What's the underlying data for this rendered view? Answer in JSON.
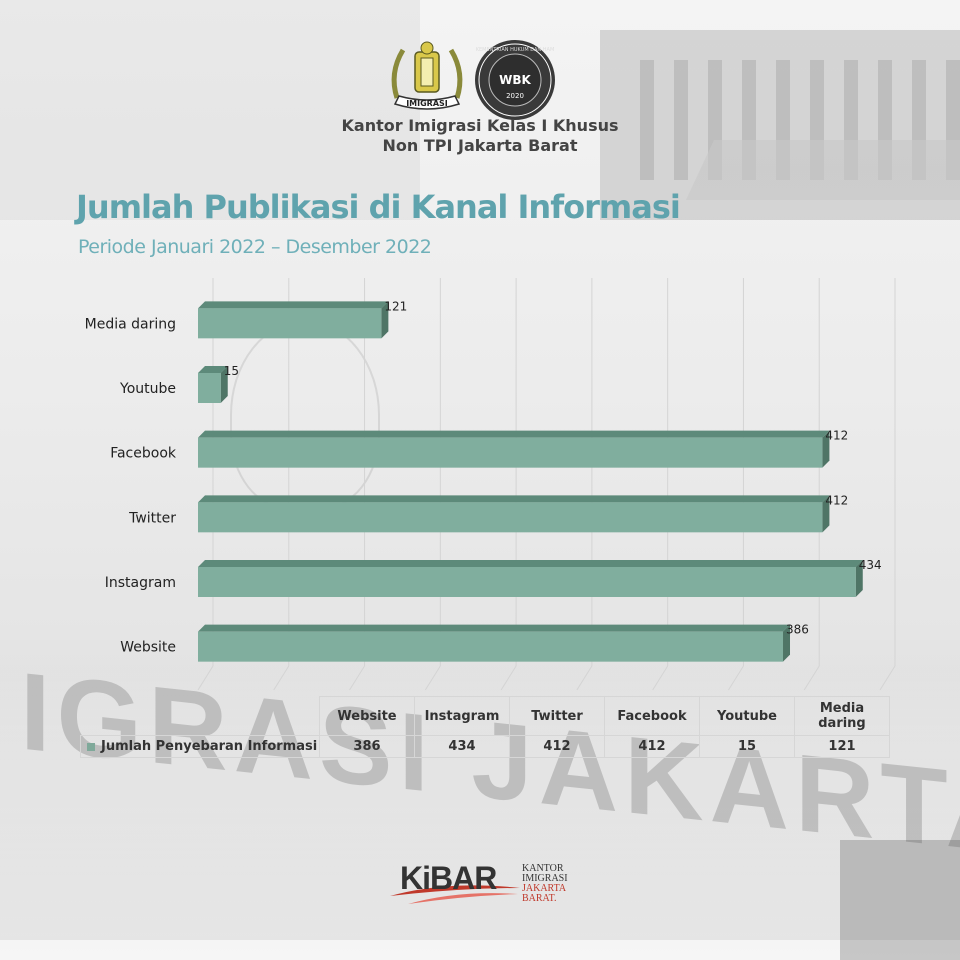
{
  "header": {
    "org_line1": "Kantor Imigrasi Kelas I Khusus",
    "org_line2": "Non TPI Jakarta Barat",
    "logo_left_text": "IMIGRASI",
    "logo_right_text": "WBK",
    "logo_right_year": "2020",
    "logo_right_ring": "KEMENTRIAN HUKUM DAN HAM"
  },
  "title": "Jumlah Publikasi di Kanal Informasi",
  "subtitle": "Periode Januari 2022 – Desember 2022",
  "chart_data": {
    "type": "bar",
    "orientation": "horizontal",
    "style": "3d",
    "categories": [
      "Website",
      "Instagram",
      "Twitter",
      "Facebook",
      "Youtube",
      "Media daring"
    ],
    "series": [
      {
        "name": "Jumlah Penyebaran Informasi",
        "values": [
          386,
          434,
          412,
          412,
          15,
          121
        ]
      }
    ],
    "xlim": [
      0,
      450
    ],
    "grid": true,
    "data_labels": true,
    "legend": "data-table-bottom",
    "colors": {
      "bar_face": "#80ae9e",
      "bar_top": "#5d8a7a",
      "bar_side": "#4f7566"
    }
  },
  "table": {
    "headers": [
      "Website",
      "Instagram",
      "Twitter",
      "Facebook",
      "Youtube",
      "Media daring"
    ],
    "row_label": "Jumlah Penyebaran Informasi",
    "values": [
      "386",
      "434",
      "412",
      "412",
      "15",
      "121"
    ]
  },
  "background": {
    "sign_text": "IGRASI JAKARTA BARAT"
  },
  "footer": {
    "brand": "KiBAR",
    "line1": "KANTOR",
    "line2": "IMIGRASI",
    "line3": "JAKARTA",
    "line4": "BARAT."
  },
  "colors": {
    "title": "#5fa3ad",
    "accent_red": "#c0392b"
  }
}
